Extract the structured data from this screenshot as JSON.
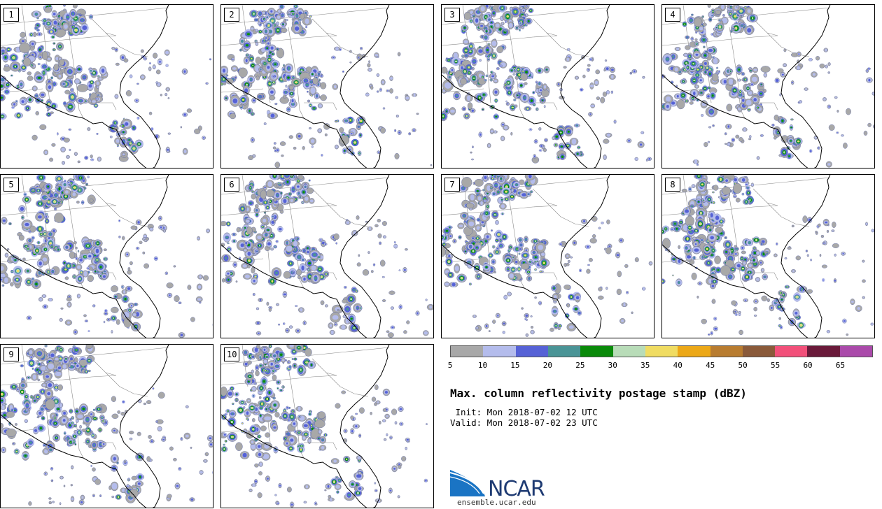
{
  "panels": [
    {
      "number": "1"
    },
    {
      "number": "2"
    },
    {
      "number": "3"
    },
    {
      "number": "4"
    },
    {
      "number": "5"
    },
    {
      "number": "6"
    },
    {
      "number": "7"
    },
    {
      "number": "8"
    },
    {
      "number": "9"
    },
    {
      "number": "10"
    }
  ],
  "colorbar": {
    "colors": [
      "#a8a8a8",
      "#b4bcec",
      "#5662d6",
      "#4a9496",
      "#0a8a0a",
      "#b8dcb8",
      "#f0dc62",
      "#eca818",
      "#b87c30",
      "#8a5a3a",
      "#f2507a",
      "#6a1a3a",
      "#aa4aaa"
    ],
    "ticks": [
      "5",
      "10",
      "15",
      "20",
      "25",
      "30",
      "35",
      "40",
      "45",
      "50",
      "55",
      "60",
      "65"
    ]
  },
  "title": "Max. column reflectivity postage stamp (dBZ)",
  "init": " Init: Mon 2018-07-02 12 UTC",
  "valid": "Valid: Mon 2018-07-02 23 UTC",
  "logo": {
    "text": "NCAR",
    "url": "ensemble.ucar.edu",
    "colors": {
      "blue": "#1a74c4",
      "navy": "#1f3b73"
    }
  }
}
